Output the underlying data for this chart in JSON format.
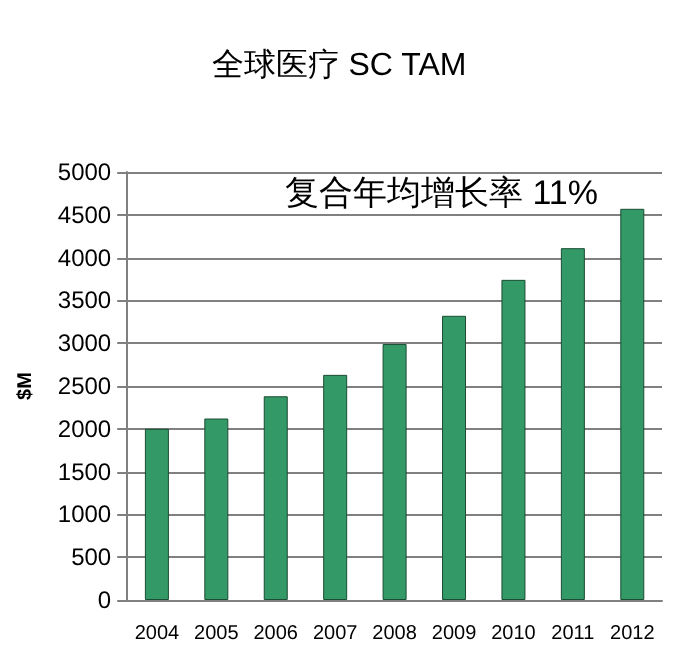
{
  "chart_data": {
    "type": "bar",
    "title": "全球医疗 SC TAM",
    "ylabel": "$M",
    "categories": [
      "2004",
      "2005",
      "2006",
      "2007",
      "2008",
      "2009",
      "2010",
      "2011",
      "2012"
    ],
    "values": [
      2000,
      2120,
      2380,
      2630,
      2990,
      3320,
      3740,
      4110,
      4570
    ],
    "color": "#339966",
    "ylim": [
      0,
      5000
    ],
    "yticks": [
      0,
      500,
      1000,
      1500,
      2000,
      2500,
      3000,
      3500,
      4000,
      4500,
      5000
    ],
    "grid": "y",
    "annotations": [
      "复合年均增长率 11%"
    ]
  }
}
